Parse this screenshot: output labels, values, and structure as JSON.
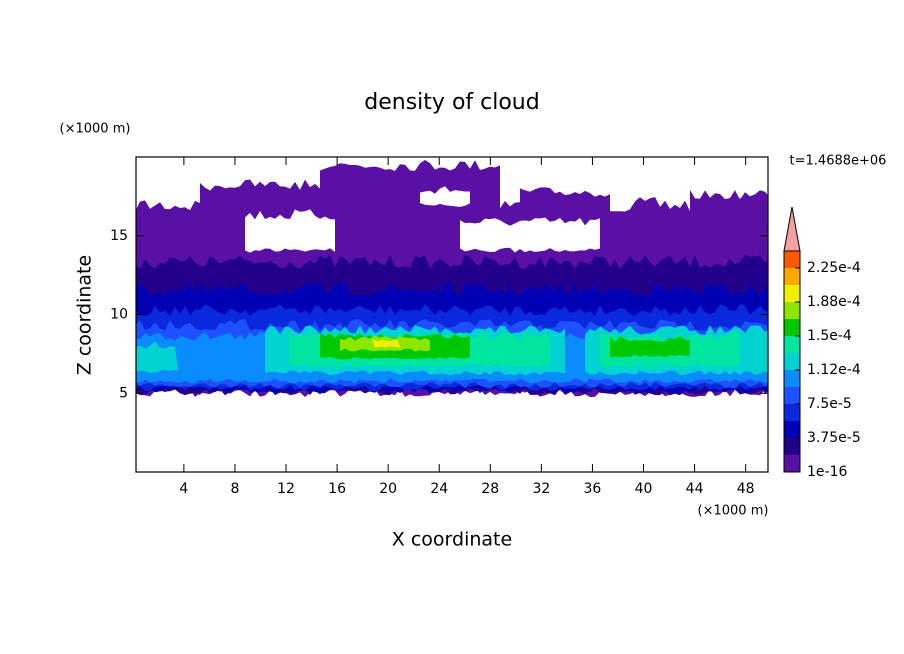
{
  "chart_data": {
    "type": "contour",
    "title": "density of cloud",
    "x_label": "X coordinate",
    "y_label": "Z coordinate",
    "x_unit": "(×1000 m)",
    "y_unit": "(×1000 m)",
    "annotation": "t=1.4688e+06",
    "xlim": [
      0.25,
      49.75
    ],
    "ylim": [
      0,
      20
    ],
    "xticks": [
      4,
      8,
      12,
      16,
      20,
      24,
      28,
      32,
      36,
      40,
      44,
      48
    ],
    "yticks": [
      5,
      10,
      15
    ],
    "colorbar": {
      "lim": [
        1e-16,
        0.00024375
      ],
      "ticks": [
        {
          "value": 1e-16,
          "label": "1e-16"
        },
        {
          "value": 3.75e-05,
          "label": "3.75e-5"
        },
        {
          "value": 7.5e-05,
          "label": "7.5e-5"
        },
        {
          "value": 0.0001125,
          "label": "1.12e-4"
        },
        {
          "value": 0.00015,
          "label": "1.5e-4"
        },
        {
          "value": 0.0001875,
          "label": "1.88e-4"
        },
        {
          "value": 0.000225,
          "label": "2.25e-4"
        }
      ],
      "colors": [
        "#5a0fa5",
        "#23008c",
        "#0000b4",
        "#0a28dc",
        "#1e50ff",
        "#0a8cff",
        "#00d2d2",
        "#00e6a0",
        "#00c800",
        "#8ce600",
        "#f0f000",
        "#ffaa00",
        "#ff5a00"
      ],
      "extend_color": "#f5a0a0"
    }
  }
}
